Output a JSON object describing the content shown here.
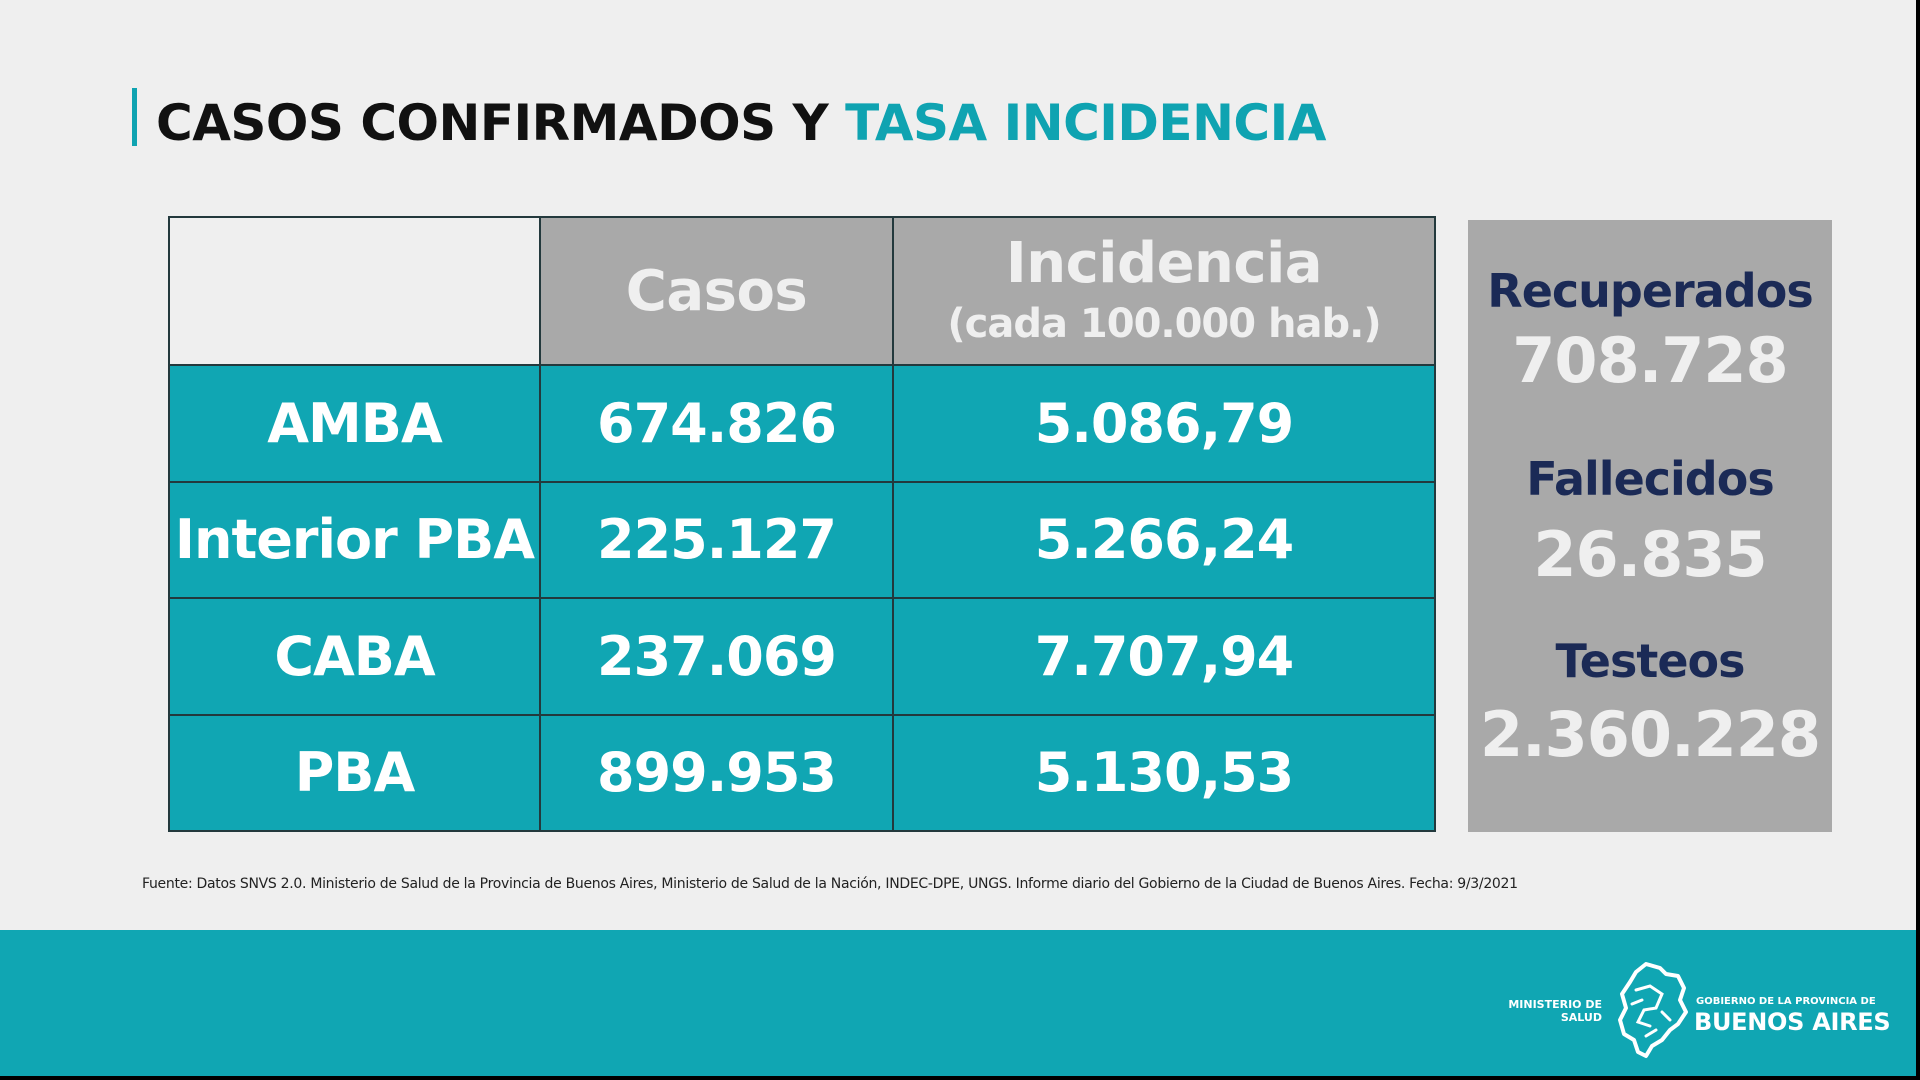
{
  "title": {
    "part1": "CASOS CONFIRMADOS Y ",
    "part2": "TASA INCIDENCIA"
  },
  "table": {
    "headers": {
      "casos": "Casos",
      "incidencia": "Incidencia",
      "incidencia_sub": "(cada 100.000 hab.)"
    },
    "rows": [
      {
        "label": "AMBA",
        "casos": "674.826",
        "incidencia": "5.086,79"
      },
      {
        "label": "Interior PBA",
        "casos": "225.127",
        "incidencia": "5.266,24"
      },
      {
        "label": "CABA",
        "casos": "237.069",
        "incidencia": "7.707,94"
      },
      {
        "label": "PBA",
        "casos": "899.953",
        "incidencia": "5.130,53"
      }
    ]
  },
  "side_panel": {
    "recuperados_label": "Recuperados",
    "recuperados_value": "708.728",
    "fallecidos_label": "Fallecidos",
    "fallecidos_value": "26.835",
    "testeos_label": "Testeos",
    "testeos_value": "2.360.228"
  },
  "source": "Fuente: Datos SNVS 2.0. Ministerio de Salud de la Provincia de Buenos Aires, Ministerio de Salud de la Nación, INDEC-DPE, UNGS. Informe diario del Gobierno de la Ciudad de Buenos Aires. Fecha: 9/3/2021",
  "footer": {
    "ministerio_line1": "MINISTERIO DE",
    "ministerio_line2": "SALUD",
    "gobierno_small": "GOBIERNO DE LA PROVINCIA DE",
    "gobierno_big": "BUENOS AIRES"
  },
  "colors": {
    "accent": "#0fa3b1",
    "table_fill": "#10a6b3",
    "header_gray": "#a9a9a9",
    "navy_label": "#1b2a56"
  },
  "icons": {
    "logo": "buenos-aires-province-map-icon"
  }
}
